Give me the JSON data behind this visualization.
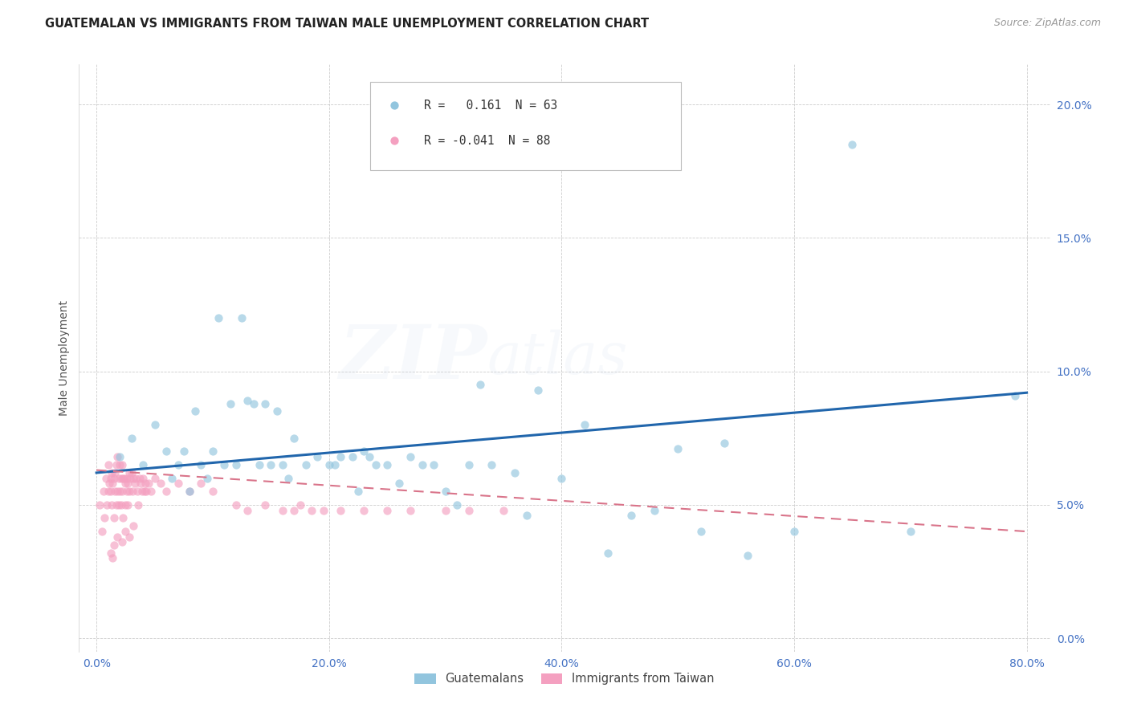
{
  "title": "GUATEMALAN VS IMMIGRANTS FROM TAIWAN MALE UNEMPLOYMENT CORRELATION CHART",
  "source": "Source: ZipAtlas.com",
  "xlabel_vals": [
    0.0,
    0.2,
    0.4,
    0.6,
    0.8
  ],
  "ylabel_vals": [
    0.0,
    0.05,
    0.1,
    0.15,
    0.2
  ],
  "xlim": [
    -0.015,
    0.82
  ],
  "ylim": [
    -0.005,
    0.215
  ],
  "watermark_zip": "ZIP",
  "watermark_atlas": "atlas",
  "legend_blue_r_val": "0.161",
  "legend_blue_n": "N = 63",
  "legend_pink_r_val": "-0.041",
  "legend_pink_n": "N = 88",
  "blue_color": "#92c5de",
  "pink_color": "#f4a0c0",
  "blue_line_color": "#2166ac",
  "pink_line_color": "#d9748a",
  "ylabel": "Male Unemployment",
  "legend_label_blue": "Guatemalans",
  "legend_label_pink": "Immigrants from Taiwan",
  "blue_scatter_x": [
    0.02,
    0.03,
    0.04,
    0.05,
    0.06,
    0.065,
    0.07,
    0.075,
    0.08,
    0.085,
    0.09,
    0.095,
    0.1,
    0.105,
    0.11,
    0.115,
    0.12,
    0.125,
    0.13,
    0.135,
    0.14,
    0.145,
    0.15,
    0.155,
    0.16,
    0.165,
    0.17,
    0.18,
    0.19,
    0.2,
    0.205,
    0.21,
    0.22,
    0.225,
    0.23,
    0.235,
    0.24,
    0.25,
    0.26,
    0.27,
    0.28,
    0.29,
    0.3,
    0.31,
    0.32,
    0.33,
    0.34,
    0.36,
    0.37,
    0.38,
    0.4,
    0.42,
    0.44,
    0.46,
    0.48,
    0.5,
    0.52,
    0.54,
    0.56,
    0.6,
    0.65,
    0.7,
    0.79
  ],
  "blue_scatter_y": [
    0.068,
    0.075,
    0.065,
    0.08,
    0.07,
    0.06,
    0.065,
    0.07,
    0.055,
    0.085,
    0.065,
    0.06,
    0.07,
    0.12,
    0.065,
    0.088,
    0.065,
    0.12,
    0.089,
    0.088,
    0.065,
    0.088,
    0.065,
    0.085,
    0.065,
    0.06,
    0.075,
    0.065,
    0.068,
    0.065,
    0.065,
    0.068,
    0.068,
    0.055,
    0.07,
    0.068,
    0.065,
    0.065,
    0.058,
    0.068,
    0.065,
    0.065,
    0.055,
    0.05,
    0.065,
    0.095,
    0.065,
    0.062,
    0.046,
    0.093,
    0.06,
    0.08,
    0.032,
    0.046,
    0.048,
    0.071,
    0.04,
    0.073,
    0.031,
    0.04,
    0.185,
    0.04,
    0.091
  ],
  "pink_scatter_x": [
    0.003,
    0.005,
    0.006,
    0.007,
    0.008,
    0.009,
    0.01,
    0.01,
    0.011,
    0.012,
    0.012,
    0.013,
    0.013,
    0.014,
    0.015,
    0.015,
    0.016,
    0.016,
    0.017,
    0.017,
    0.018,
    0.018,
    0.019,
    0.019,
    0.02,
    0.02,
    0.021,
    0.021,
    0.022,
    0.022,
    0.023,
    0.023,
    0.024,
    0.025,
    0.025,
    0.026,
    0.026,
    0.027,
    0.027,
    0.028,
    0.028,
    0.029,
    0.03,
    0.031,
    0.032,
    0.033,
    0.034,
    0.035,
    0.036,
    0.037,
    0.038,
    0.039,
    0.04,
    0.041,
    0.042,
    0.043,
    0.045,
    0.047,
    0.05,
    0.055,
    0.06,
    0.07,
    0.08,
    0.09,
    0.1,
    0.12,
    0.13,
    0.145,
    0.16,
    0.17,
    0.175,
    0.185,
    0.195,
    0.21,
    0.23,
    0.25,
    0.27,
    0.3,
    0.32,
    0.35,
    0.025,
    0.028,
    0.032,
    0.015,
    0.018,
    0.022,
    0.012,
    0.014
  ],
  "pink_scatter_y": [
    0.05,
    0.04,
    0.055,
    0.045,
    0.06,
    0.05,
    0.065,
    0.055,
    0.058,
    0.06,
    0.055,
    0.062,
    0.05,
    0.058,
    0.06,
    0.045,
    0.062,
    0.055,
    0.065,
    0.05,
    0.068,
    0.055,
    0.06,
    0.05,
    0.065,
    0.055,
    0.06,
    0.05,
    0.065,
    0.055,
    0.06,
    0.045,
    0.06,
    0.058,
    0.05,
    0.06,
    0.055,
    0.058,
    0.05,
    0.062,
    0.055,
    0.06,
    0.062,
    0.055,
    0.06,
    0.058,
    0.06,
    0.055,
    0.05,
    0.06,
    0.058,
    0.055,
    0.06,
    0.055,
    0.058,
    0.055,
    0.058,
    0.055,
    0.06,
    0.058,
    0.055,
    0.058,
    0.055,
    0.058,
    0.055,
    0.05,
    0.048,
    0.05,
    0.048,
    0.048,
    0.05,
    0.048,
    0.048,
    0.048,
    0.048,
    0.048,
    0.048,
    0.048,
    0.048,
    0.048,
    0.04,
    0.038,
    0.042,
    0.035,
    0.038,
    0.036,
    0.032,
    0.03
  ],
  "blue_trend_x0": 0.0,
  "blue_trend_x1": 0.8,
  "blue_trend_y0": 0.062,
  "blue_trend_y1": 0.092,
  "pink_trend_x0": 0.0,
  "pink_trend_x1": 0.8,
  "pink_trend_y0": 0.063,
  "pink_trend_y1": 0.04,
  "grid_color": "#cccccc",
  "background_color": "#ffffff",
  "title_fontsize": 10.5,
  "source_fontsize": 9,
  "axis_label_color": "#555555",
  "tick_color": "#4472c4",
  "watermark_alpha": 0.13,
  "scatter_size": 55,
  "scatter_alpha": 0.65
}
